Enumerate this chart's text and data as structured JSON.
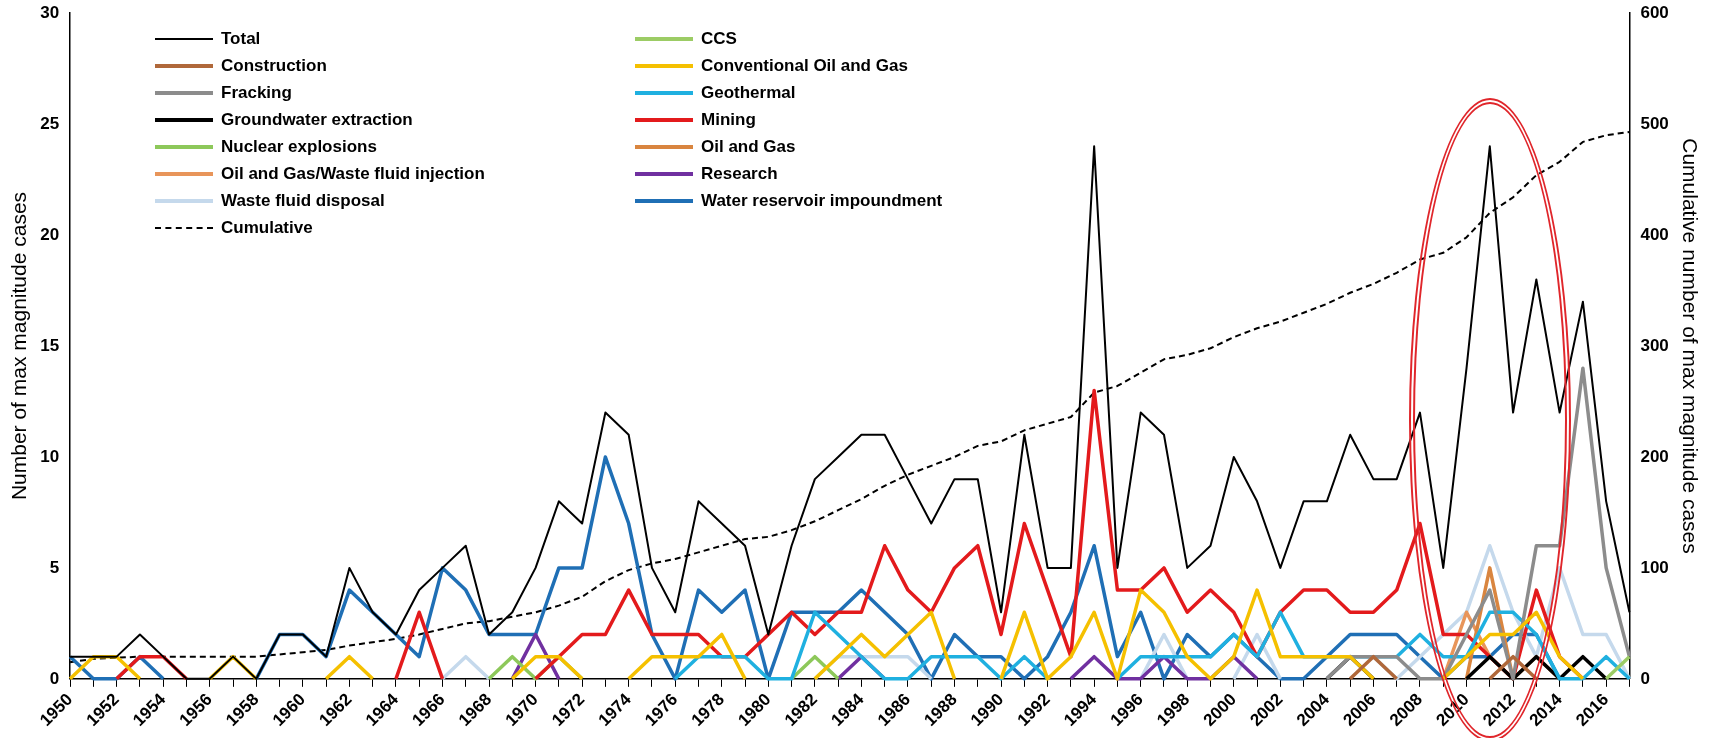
{
  "chart_data": {
    "type": "line",
    "ylabel": "Number of max magnitude cases",
    "y2label": "Cumulative number of max magnitude cases",
    "categories": [
      "1950",
      null,
      "1952",
      null,
      "1954",
      null,
      "1956",
      null,
      "1958",
      null,
      "1960",
      null,
      "1962",
      null,
      "1964",
      null,
      "1966",
      null,
      "1968",
      null,
      "1970",
      null,
      "1972",
      null,
      "1974",
      null,
      "1976",
      null,
      "1978",
      null,
      "1980",
      null,
      "1982",
      null,
      "1984",
      null,
      "1986",
      null,
      "1988",
      null,
      "1990",
      null,
      "1992",
      null,
      "1994",
      null,
      "1996",
      null,
      "1998",
      null,
      "2000",
      null,
      "2002",
      null,
      "2004",
      null,
      "2006",
      null,
      "2008",
      null,
      "2010",
      null,
      "2012",
      null,
      "2014",
      null,
      "2016",
      null
    ],
    "ylim": [
      0,
      30
    ],
    "yticks": [
      0,
      5,
      10,
      15,
      20,
      25,
      30
    ],
    "y2lim": [
      0,
      600
    ],
    "y2ticks": [
      0,
      100,
      200,
      300,
      400,
      500,
      600
    ],
    "grid": false,
    "legend": "top left",
    "marker": "none",
    "series": [
      {
        "name": "Total",
        "color": "#000000",
        "values": [
          1,
          1,
          1,
          2,
          1,
          0,
          0,
          1,
          0,
          2,
          2,
          1,
          5,
          3,
          2,
          4,
          5,
          6,
          2,
          3,
          5,
          8,
          7,
          12,
          11,
          5,
          3,
          8,
          7,
          6,
          2,
          6,
          9,
          10,
          11,
          11,
          9,
          7,
          9,
          9,
          3,
          11,
          5,
          5,
          24,
          5,
          12,
          11,
          5,
          6,
          10,
          8,
          5,
          8,
          8,
          11,
          9,
          9,
          12,
          5,
          14,
          24,
          12,
          18,
          12,
          17,
          8,
          3
        ]
      },
      {
        "name": "CCS",
        "color": "#9ccc65",
        "values": [
          null,
          null,
          null,
          null,
          null,
          null,
          null,
          null,
          null,
          null,
          null,
          null,
          null,
          null,
          null,
          null,
          null,
          null,
          null,
          null,
          null,
          null,
          null,
          null,
          null,
          null,
          null,
          null,
          null,
          null,
          null,
          null,
          null,
          null,
          null,
          null,
          null,
          null,
          null,
          null,
          null,
          null,
          null,
          null,
          null,
          null,
          null,
          null,
          null,
          null,
          null,
          null,
          null,
          null,
          null,
          null,
          null,
          null,
          null,
          null,
          null,
          null,
          null,
          null,
          null,
          null,
          0,
          1
        ]
      },
      {
        "name": "Construction",
        "color": "#b0683a",
        "values": [
          null,
          null,
          null,
          null,
          null,
          null,
          null,
          null,
          null,
          null,
          null,
          null,
          null,
          null,
          null,
          null,
          null,
          null,
          null,
          null,
          null,
          null,
          null,
          null,
          null,
          null,
          null,
          null,
          null,
          null,
          null,
          null,
          null,
          null,
          null,
          null,
          null,
          null,
          null,
          null,
          null,
          null,
          null,
          null,
          null,
          null,
          null,
          null,
          null,
          null,
          null,
          null,
          null,
          null,
          null,
          0,
          1,
          0,
          null,
          null,
          null,
          0,
          1,
          0,
          null,
          null,
          null,
          null
        ]
      },
      {
        "name": "Conventional Oil and Gas",
        "color": "#f5c000",
        "values": [
          0,
          1,
          1,
          0,
          null,
          null,
          0,
          1,
          0,
          null,
          null,
          0,
          1,
          0,
          null,
          null,
          null,
          null,
          null,
          0,
          1,
          1,
          0,
          null,
          0,
          1,
          1,
          1,
          2,
          0,
          null,
          null,
          0,
          1,
          2,
          1,
          2,
          3,
          0,
          null,
          0,
          3,
          0,
          1,
          3,
          0,
          4,
          3,
          1,
          0,
          1,
          4,
          1,
          1,
          1,
          1,
          0,
          null,
          null,
          0,
          1,
          2,
          2,
          3,
          1,
          0,
          null,
          null
        ]
      },
      {
        "name": "Fracking",
        "color": "#8c8c8c",
        "values": [
          null,
          null,
          null,
          null,
          null,
          null,
          null,
          null,
          null,
          null,
          null,
          null,
          null,
          null,
          null,
          null,
          null,
          null,
          null,
          null,
          null,
          null,
          null,
          null,
          null,
          null,
          null,
          null,
          null,
          null,
          null,
          null,
          null,
          null,
          null,
          null,
          null,
          null,
          null,
          null,
          null,
          null,
          null,
          null,
          null,
          null,
          null,
          null,
          null,
          null,
          null,
          null,
          null,
          null,
          0,
          1,
          1,
          1,
          0,
          0,
          2,
          4,
          0,
          6,
          6,
          14,
          5,
          1
        ]
      },
      {
        "name": "Geothermal",
        "color": "#1fb0e0",
        "values": [
          null,
          null,
          null,
          null,
          null,
          null,
          null,
          null,
          null,
          null,
          null,
          null,
          null,
          null,
          null,
          null,
          null,
          null,
          null,
          null,
          null,
          null,
          null,
          null,
          null,
          null,
          0,
          1,
          1,
          1,
          0,
          0,
          3,
          2,
          1,
          0,
          0,
          1,
          1,
          1,
          0,
          1,
          0,
          null,
          null,
          0,
          1,
          1,
          1,
          1,
          2,
          1,
          3,
          1,
          1,
          1,
          1,
          1,
          2,
          1,
          1,
          3,
          3,
          2,
          0,
          0,
          1,
          0
        ]
      },
      {
        "name": "Groundwater extraction",
        "color": "#000000",
        "values": [
          null,
          null,
          null,
          null,
          null,
          null,
          null,
          null,
          null,
          null,
          null,
          null,
          null,
          null,
          null,
          null,
          null,
          null,
          null,
          null,
          null,
          null,
          null,
          null,
          null,
          null,
          null,
          null,
          null,
          null,
          null,
          null,
          null,
          null,
          null,
          null,
          null,
          null,
          null,
          null,
          null,
          null,
          null,
          null,
          null,
          null,
          null,
          null,
          null,
          null,
          null,
          null,
          null,
          null,
          0,
          1,
          0,
          null,
          null,
          null,
          0,
          1,
          0,
          1,
          0,
          1,
          0,
          null
        ]
      },
      {
        "name": "Mining",
        "color": "#e31a1c",
        "values": [
          null,
          null,
          0,
          1,
          1,
          0,
          null,
          null,
          null,
          null,
          null,
          null,
          null,
          null,
          0,
          3,
          0,
          null,
          null,
          null,
          0,
          1,
          2,
          2,
          4,
          2,
          2,
          2,
          1,
          1,
          2,
          3,
          2,
          3,
          3,
          6,
          4,
          3,
          5,
          6,
          2,
          7,
          4,
          1,
          13,
          4,
          4,
          5,
          3,
          4,
          3,
          1,
          3,
          4,
          4,
          3,
          3,
          4,
          7,
          2,
          2,
          1,
          0,
          4,
          1,
          0,
          null,
          null
        ]
      },
      {
        "name": "Nuclear explosions",
        "color": "#8dc85a",
        "values": [
          null,
          null,
          null,
          null,
          null,
          null,
          null,
          null,
          null,
          null,
          null,
          null,
          null,
          null,
          null,
          null,
          null,
          null,
          0,
          1,
          0,
          1,
          0,
          null,
          null,
          null,
          null,
          null,
          null,
          null,
          null,
          0,
          1,
          0,
          null,
          null,
          null,
          null,
          null,
          null,
          null,
          null,
          null,
          null,
          null,
          null,
          null,
          null,
          null,
          null,
          null,
          null,
          null,
          null,
          null,
          null,
          null,
          null,
          null,
          null,
          null,
          null,
          null,
          null,
          null,
          null,
          null,
          null
        ]
      },
      {
        "name": "Oil and Gas",
        "color": "#d9853f",
        "values": [
          null,
          null,
          null,
          null,
          null,
          null,
          null,
          null,
          null,
          null,
          null,
          null,
          null,
          null,
          null,
          null,
          null,
          null,
          null,
          null,
          null,
          null,
          null,
          null,
          null,
          null,
          null,
          null,
          null,
          null,
          null,
          null,
          null,
          null,
          null,
          null,
          null,
          null,
          null,
          null,
          null,
          null,
          null,
          null,
          null,
          null,
          null,
          null,
          null,
          null,
          null,
          null,
          null,
          null,
          null,
          null,
          null,
          null,
          null,
          null,
          0,
          5,
          0,
          1,
          0,
          null,
          null,
          null
        ]
      },
      {
        "name": "Oil and Gas/Waste fluid injection",
        "color": "#e8955a",
        "values": [
          null,
          null,
          null,
          null,
          null,
          null,
          null,
          null,
          null,
          null,
          null,
          null,
          null,
          null,
          null,
          null,
          null,
          null,
          null,
          null,
          null,
          null,
          null,
          null,
          null,
          null,
          null,
          null,
          null,
          null,
          null,
          null,
          null,
          null,
          null,
          null,
          null,
          null,
          null,
          null,
          null,
          null,
          null,
          null,
          null,
          null,
          null,
          null,
          null,
          null,
          null,
          null,
          null,
          null,
          null,
          null,
          null,
          null,
          null,
          0,
          3,
          1,
          0,
          null,
          null,
          null,
          null,
          null
        ]
      },
      {
        "name": "Research",
        "color": "#7030a0",
        "values": [
          null,
          null,
          null,
          null,
          null,
          null,
          null,
          null,
          null,
          null,
          null,
          null,
          null,
          null,
          null,
          null,
          null,
          null,
          null,
          0,
          2,
          0,
          null,
          null,
          null,
          null,
          null,
          null,
          null,
          null,
          null,
          null,
          null,
          0,
          1,
          0,
          null,
          null,
          null,
          null,
          null,
          null,
          null,
          0,
          1,
          0,
          0,
          1,
          0,
          0,
          1,
          0,
          null,
          null,
          null,
          null,
          null,
          null,
          null,
          null,
          null,
          null,
          null,
          null,
          null,
          null,
          null,
          null
        ]
      },
      {
        "name": "Waste fluid disposal",
        "color": "#c5d9ec",
        "values": [
          null,
          null,
          null,
          null,
          null,
          null,
          null,
          null,
          null,
          null,
          null,
          null,
          null,
          null,
          null,
          null,
          0,
          1,
          0,
          null,
          null,
          null,
          null,
          null,
          null,
          null,
          null,
          null,
          null,
          null,
          null,
          null,
          0,
          1,
          1,
          1,
          1,
          0,
          null,
          null,
          null,
          null,
          null,
          null,
          null,
          null,
          0,
          2,
          0,
          null,
          0,
          2,
          0,
          null,
          0,
          1,
          1,
          0,
          1,
          2,
          3,
          6,
          3,
          1,
          5,
          2,
          2,
          0
        ]
      },
      {
        "name": "Water reservoir impoundment",
        "color": "#1f6fb5",
        "values": [
          1,
          0,
          0,
          1,
          0,
          null,
          null,
          null,
          0,
          2,
          2,
          1,
          4,
          3,
          2,
          1,
          5,
          4,
          2,
          2,
          2,
          5,
          5,
          10,
          7,
          2,
          0,
          4,
          3,
          4,
          0,
          3,
          3,
          3,
          4,
          3,
          2,
          0,
          2,
          1,
          1,
          0,
          1,
          3,
          6,
          1,
          3,
          0,
          2,
          1,
          2,
          1,
          0,
          0,
          1,
          2,
          2,
          2,
          1,
          0,
          1,
          1,
          2,
          2,
          0,
          null,
          null,
          null
        ]
      },
      {
        "name": "Cumulative",
        "color": "#000000",
        "axis": "y2",
        "line_style": "dashed",
        "values": [
          15,
          18,
          19,
          20,
          20,
          20,
          20,
          20,
          20,
          22,
          24,
          26,
          30,
          33,
          36,
          40,
          45,
          50,
          52,
          56,
          60,
          66,
          74,
          88,
          98,
          104,
          108,
          114,
          120,
          126,
          128,
          134,
          142,
          152,
          162,
          174,
          184,
          192,
          200,
          210,
          214,
          224,
          230,
          236,
          258,
          264,
          276,
          288,
          292,
          298,
          308,
          316,
          322,
          330,
          338,
          348,
          356,
          366,
          378,
          384,
          398,
          420,
          434,
          454,
          466,
          484,
          490,
          493
        ]
      }
    ]
  }
}
